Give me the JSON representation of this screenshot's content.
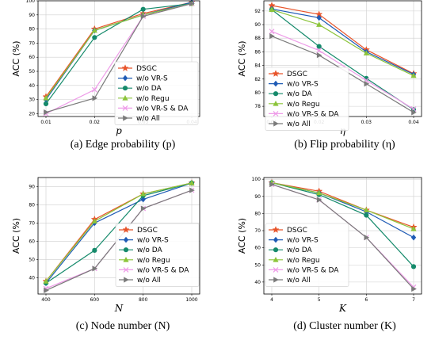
{
  "series_style": [
    {
      "name": "DSGC",
      "color": "#e8542a",
      "marker": "star"
    },
    {
      "name": "w/o VR-S",
      "color": "#1f5bb5",
      "marker": "diamond"
    },
    {
      "name": "w/o DA",
      "color": "#158a6b",
      "marker": "circle"
    },
    {
      "name": "w/o Regu",
      "color": "#8cc43a",
      "marker": "triangle-up"
    },
    {
      "name": "w/o VR-S & DA",
      "color": "#ee9be8",
      "marker": "x"
    },
    {
      "name": "w/o All",
      "color": "#7a7a7a",
      "marker": "triangle-right"
    }
  ],
  "chart_data": [
    {
      "type": "line",
      "caption": "(a) Edge probability (p)",
      "xlabel": "p",
      "ylabel": "ACC (%)",
      "x": [
        0.01,
        0.02,
        0.03,
        0.04
      ],
      "xticks": [
        "0.01",
        "0.02",
        "0.03",
        "0.04"
      ],
      "ylim": [
        18,
        100
      ],
      "yticks": [
        20,
        30,
        40,
        50,
        60,
        70,
        80,
        90,
        100
      ],
      "grid": true,
      "legend": "lower-right",
      "series": [
        {
          "name": "DSGC",
          "values": [
            32,
            80,
            91,
            99
          ]
        },
        {
          "name": "w/o VR-S",
          "values": [
            30,
            79,
            90,
            99
          ]
        },
        {
          "name": "w/o DA",
          "values": [
            27,
            74,
            94,
            98
          ]
        },
        {
          "name": "w/o Regu",
          "values": [
            31,
            79,
            90,
            98
          ]
        },
        {
          "name": "w/o VR-S & DA",
          "values": [
            20,
            37,
            89,
            98
          ]
        },
        {
          "name": "w/o All",
          "values": [
            21,
            31,
            89,
            98
          ]
        }
      ]
    },
    {
      "type": "line",
      "caption": "(b) Flip probability (η)",
      "xlabel": "η",
      "ylabel": "ACC (%)",
      "x": [
        0.01,
        0.02,
        0.03,
        0.04
      ],
      "xticks": [
        "0.01",
        "0.02",
        "0.03",
        "0.04"
      ],
      "ylim": [
        76.5,
        93.5
      ],
      "yticks": [
        78,
        80,
        82,
        84,
        86,
        88,
        90,
        92
      ],
      "grid": true,
      "legend": "lower-right",
      "series": [
        {
          "name": "DSGC",
          "values": [
            92.8,
            91.5,
            86.3,
            82.8
          ]
        },
        {
          "name": "w/o VR-S",
          "values": [
            92.3,
            91.0,
            86.0,
            82.7
          ]
        },
        {
          "name": "w/o DA",
          "values": [
            92.2,
            86.8,
            82.1,
            77.5
          ]
        },
        {
          "name": "w/o Regu",
          "values": [
            92.2,
            90.0,
            85.8,
            82.5
          ]
        },
        {
          "name": "w/o VR-S & DA",
          "values": [
            89.0,
            86.2,
            81.8,
            77.6
          ]
        },
        {
          "name": "w/o All",
          "values": [
            88.3,
            85.5,
            81.3,
            77.1
          ]
        }
      ]
    },
    {
      "type": "line",
      "caption": "(c) Node number (N)",
      "xlabel": "N",
      "ylabel": "ACC (%)",
      "x": [
        400,
        600,
        800,
        1000
      ],
      "xticks": [
        "400",
        "600",
        "800",
        "1000"
      ],
      "ylim": [
        31,
        95
      ],
      "yticks": [
        40,
        50,
        60,
        70,
        80,
        90
      ],
      "grid": true,
      "legend": "lower-right",
      "series": [
        {
          "name": "DSGC",
          "values": [
            38,
            72,
            86,
            92
          ]
        },
        {
          "name": "w/o VR-S",
          "values": [
            37,
            70,
            83,
            92
          ]
        },
        {
          "name": "w/o DA",
          "values": [
            37,
            55,
            85,
            92
          ]
        },
        {
          "name": "w/o Regu",
          "values": [
            38,
            71,
            86,
            92
          ]
        },
        {
          "name": "w/o VR-S & DA",
          "values": [
            34,
            45,
            78,
            88
          ]
        },
        {
          "name": "w/o All",
          "values": [
            33,
            45,
            78,
            88
          ]
        }
      ]
    },
    {
      "type": "line",
      "caption": "(d) Cluster number (K)",
      "xlabel": "K",
      "ylabel": "ACC (%)",
      "x": [
        4,
        5,
        6,
        7
      ],
      "xticks": [
        "4",
        "5",
        "6",
        "7"
      ],
      "ylim": [
        33,
        101
      ],
      "yticks": [
        40,
        50,
        60,
        70,
        80,
        90,
        100
      ],
      "grid": true,
      "legend": "lower-left",
      "series": [
        {
          "name": "DSGC",
          "values": [
            98,
            93,
            82,
            72
          ]
        },
        {
          "name": "w/o VR-S",
          "values": [
            98,
            92,
            81,
            66
          ]
        },
        {
          "name": "w/o DA",
          "values": [
            98,
            91,
            79,
            49
          ]
        },
        {
          "name": "w/o Regu",
          "values": [
            98,
            92,
            82,
            71
          ]
        },
        {
          "name": "w/o VR-S & DA",
          "values": [
            97,
            88,
            66,
            37
          ]
        },
        {
          "name": "w/o All",
          "values": [
            97,
            88,
            66,
            36
          ]
        }
      ]
    }
  ]
}
